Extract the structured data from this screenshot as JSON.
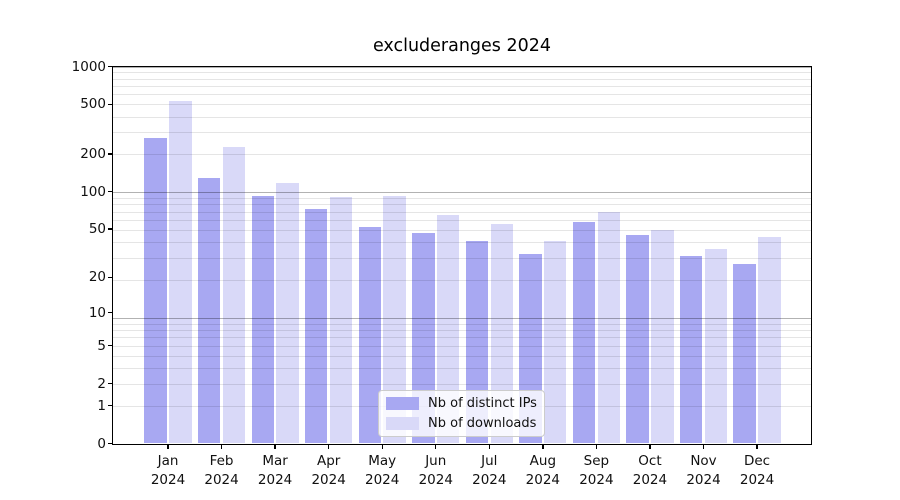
{
  "chart_data": {
    "type": "bar",
    "title": "excluderanges 2024",
    "categories": [
      "Jan",
      "Feb",
      "Mar",
      "Apr",
      "May",
      "Jun",
      "Jul",
      "Aug",
      "Sep",
      "Oct",
      "Nov",
      "Dec"
    ],
    "category_year": "2024",
    "series": [
      {
        "name": "Nb of distinct IPs",
        "color": "#a8a8f2",
        "values": [
          270,
          129,
          92,
          72,
          52,
          46,
          40,
          31,
          57,
          45,
          30,
          26
        ]
      },
      {
        "name": "Nb of downloads",
        "color": "#d9d9f8",
        "values": [
          535,
          230,
          118,
          91,
          93,
          65,
          55,
          40,
          68,
          49,
          34,
          43
        ]
      }
    ],
    "yscale": "log1p",
    "ylim": [
      0,
      1000
    ],
    "yticks": [
      1000,
      500,
      200,
      100,
      50,
      20,
      10,
      5,
      2,
      1,
      0
    ],
    "grid": true,
    "legend_position": "lower center",
    "xlabel": "",
    "ylabel": ""
  }
}
